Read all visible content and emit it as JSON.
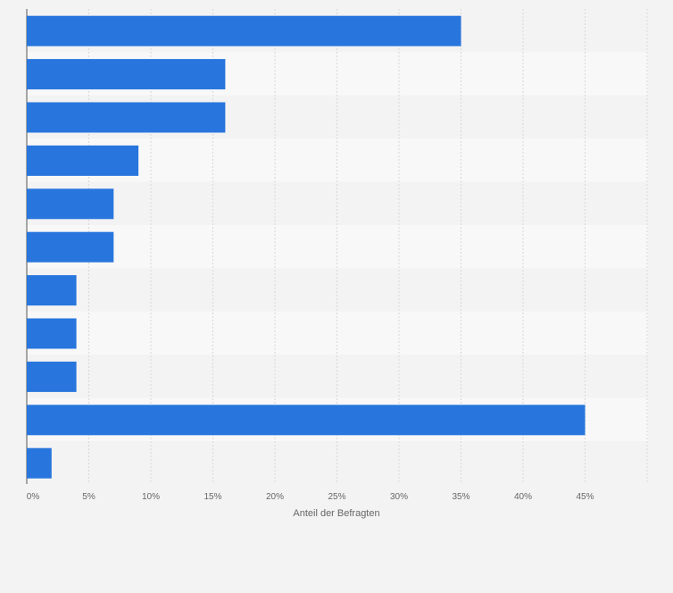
{
  "chart_data": {
    "type": "bar",
    "orientation": "horizontal",
    "categories": [
      "",
      "",
      "",
      "",
      "",
      "",
      "",
      "",
      "",
      "",
      ""
    ],
    "values": [
      35,
      16,
      16,
      9,
      7,
      7,
      4,
      4,
      4,
      45,
      2
    ],
    "xlabel": "Anteil der Befragten",
    "ylabel": "",
    "xlim": [
      0,
      50
    ],
    "x_ticks": [
      "0%",
      "5%",
      "10%",
      "15%",
      "20%",
      "25%",
      "30%",
      "35%",
      "40%",
      "45%"
    ],
    "bar_color": "#2876dd",
    "grid": true,
    "legend": "none"
  }
}
